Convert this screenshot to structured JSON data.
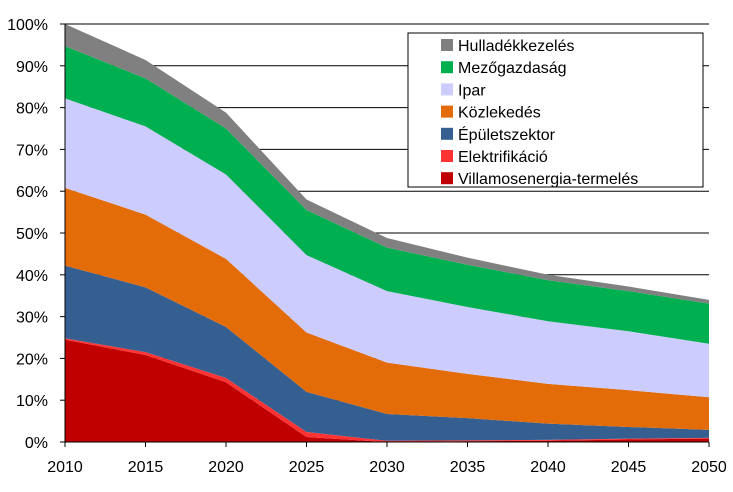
{
  "chart_data": {
    "type": "area",
    "stacked": true,
    "title": "",
    "xlabel": "",
    "ylabel": "",
    "x": [
      2010,
      2015,
      2020,
      2025,
      2030,
      2035,
      2040,
      2045,
      2050
    ],
    "xlim": [
      2010,
      2050
    ],
    "ylim": [
      0,
      100
    ],
    "y_ticks": [
      "0%",
      "10%",
      "20%",
      "30%",
      "40%",
      "50%",
      "60%",
      "70%",
      "80%",
      "90%",
      "100%"
    ],
    "x_ticks": [
      "2010",
      "2015",
      "2020",
      "2025",
      "2030",
      "2035",
      "2040",
      "2045",
      "2050"
    ],
    "grid": true,
    "legend_position": "top-right",
    "series": [
      {
        "name": "Villamosenergia-termelés",
        "color": "#C00000",
        "values": [
          24.5,
          20.8,
          14.3,
          1.2,
          0.0,
          0.2,
          0.3,
          0.6,
          0.8
        ]
      },
      {
        "name": "Elektrifikáció",
        "color": "#FF3333",
        "values": [
          0.3,
          0.7,
          1.0,
          1.2,
          0.3,
          0.2,
          0.2,
          0.2,
          0.2
        ]
      },
      {
        "name": "Épületszektor",
        "color": "#365F91",
        "values": [
          17.4,
          15.5,
          12.2,
          9.6,
          6.4,
          5.3,
          3.9,
          2.8,
          1.9
        ]
      },
      {
        "name": "Közlekedés",
        "color": "#E36C09",
        "values": [
          18.6,
          17.4,
          16.3,
          14.2,
          12.3,
          10.6,
          9.5,
          8.8,
          7.8
        ]
      },
      {
        "name": "Ipar",
        "color": "#CCCCFF",
        "values": [
          21.4,
          21.1,
          20.2,
          18.5,
          17.1,
          16.0,
          15.0,
          14.1,
          12.8
        ]
      },
      {
        "name": "Mezőgazdaság",
        "color": "#00B050",
        "values": [
          12.5,
          11.5,
          11.0,
          10.8,
          10.4,
          10.1,
          9.8,
          9.6,
          9.6
        ]
      },
      {
        "name": "Hulladékkezelés",
        "color": "#808080",
        "values": [
          5.3,
          4.4,
          3.8,
          2.5,
          2.3,
          1.7,
          1.3,
          1.1,
          0.9
        ]
      }
    ]
  }
}
